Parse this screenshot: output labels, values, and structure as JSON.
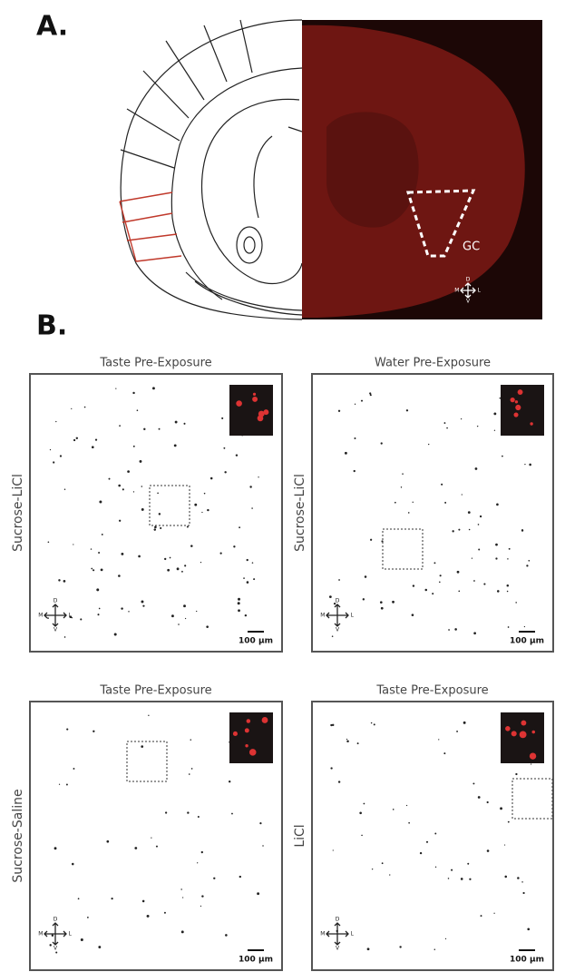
{
  "panel_a": {
    "label": "A.",
    "region_label": "GC"
  },
  "compass": {
    "d": "D",
    "m": "M",
    "l": "L",
    "v": "V"
  },
  "panel_b": {
    "label": "B.",
    "scale_bar": "100 μm",
    "panels": [
      {
        "title": "Taste Pre-Exposure",
        "row_label": "Sucrose-LiCl"
      },
      {
        "title": "Water Pre-Exposure",
        "row_label": "Sucrose-LiCl"
      },
      {
        "title": "Taste Pre-Exposure",
        "row_label": "Sucrose-Saline"
      },
      {
        "title": "Taste Pre-Exposure",
        "row_label": "LiCl"
      }
    ]
  }
}
